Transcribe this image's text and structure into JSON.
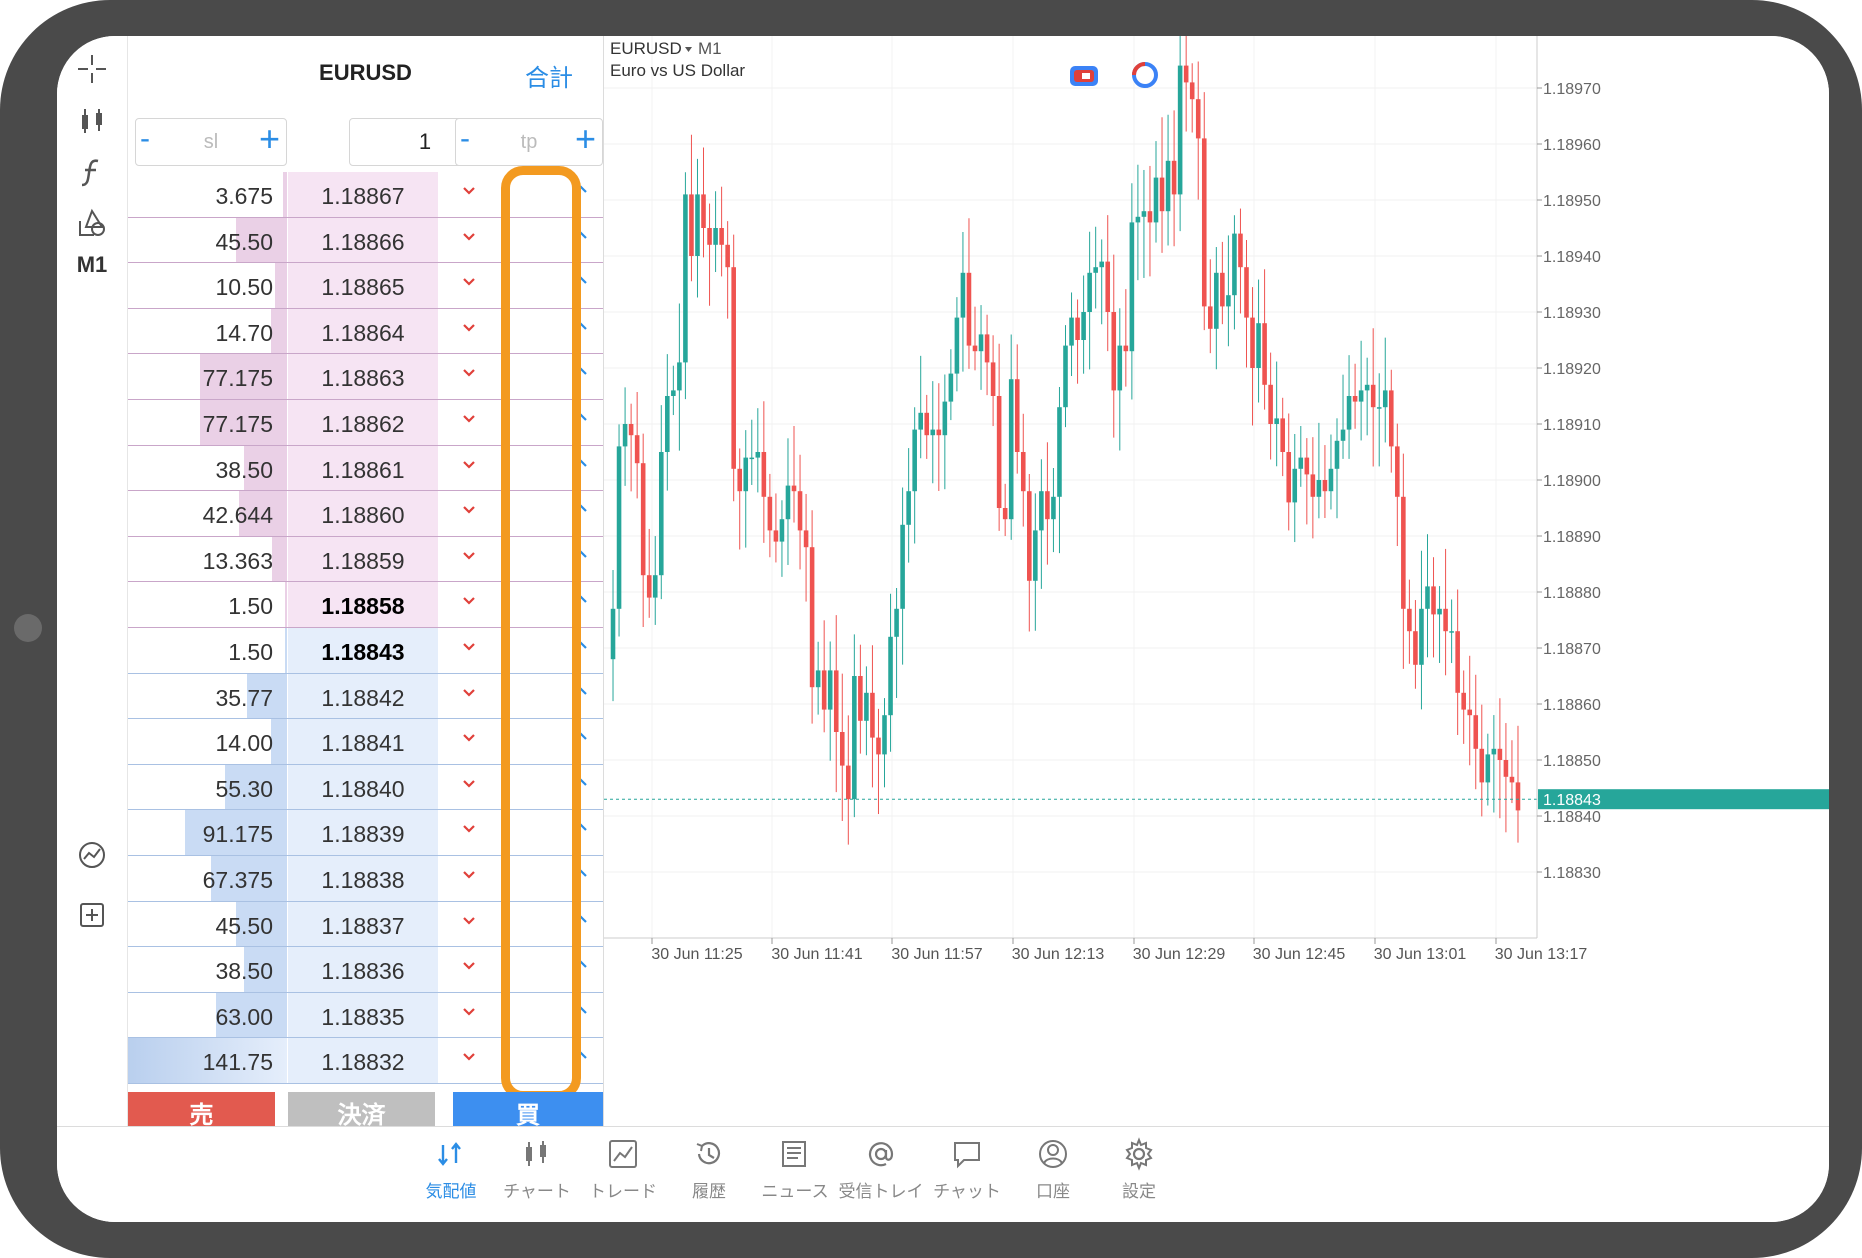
{
  "depth": {
    "symbol": "EURUSD",
    "total_label": "合計",
    "sl_placeholder": "sl",
    "tp_placeholder": "tp",
    "minus": "-",
    "plus": "+",
    "volume": "1",
    "asks": [
      {
        "volume": "3.675",
        "price": "1.18867"
      },
      {
        "volume": "45.50",
        "price": "1.18866"
      },
      {
        "volume": "10.50",
        "price": "1.18865"
      },
      {
        "volume": "14.70",
        "price": "1.18864"
      },
      {
        "volume": "77.175",
        "price": "1.18863"
      },
      {
        "volume": "77.175",
        "price": "1.18862"
      },
      {
        "volume": "38.50",
        "price": "1.18861"
      },
      {
        "volume": "42.644",
        "price": "1.18860"
      },
      {
        "volume": "13.363",
        "price": "1.18859"
      },
      {
        "volume": "1.50",
        "price": "1.18858"
      }
    ],
    "bids": [
      {
        "volume": "1.50",
        "price": "1.18843"
      },
      {
        "volume": "35.77",
        "price": "1.18842"
      },
      {
        "volume": "14.00",
        "price": "1.18841"
      },
      {
        "volume": "55.30",
        "price": "1.18840"
      },
      {
        "volume": "91.175",
        "price": "1.18839"
      },
      {
        "volume": "67.375",
        "price": "1.18838"
      },
      {
        "volume": "45.50",
        "price": "1.18837"
      },
      {
        "volume": "38.50",
        "price": "1.18836"
      },
      {
        "volume": "63.00",
        "price": "1.18835"
      },
      {
        "volume": "141.75",
        "price": "1.18832"
      }
    ],
    "sell_label": "売",
    "close_label": "決済",
    "buy_label": "買"
  },
  "toolbar": {
    "icons": [
      "crosshair-icon",
      "candlestick-icon",
      "indicator-icon",
      "objects-icon"
    ],
    "timeframe": "M1",
    "bottom_icons": [
      "trade-chart-icon",
      "new-order-icon"
    ]
  },
  "chart_data": {
    "type": "candlestick",
    "symbol": "EURUSD",
    "timeframe": "M1",
    "description": "Euro vs US Dollar",
    "ylim": [
      1.18825,
      1.18975
    ],
    "y_ticks": [
      "1.18970",
      "1.18960",
      "1.18950",
      "1.18940",
      "1.18930",
      "1.18920",
      "1.18910",
      "1.18900",
      "1.18890",
      "1.18880",
      "1.18870",
      "1.18860",
      "1.18850",
      "1.18840",
      "1.18830"
    ],
    "x_ticks": [
      "30 Jun 11:25",
      "30 Jun 11:41",
      "30 Jun 11:57",
      "30 Jun 12:13",
      "30 Jun 12:29",
      "30 Jun 12:45",
      "30 Jun 13:01",
      "30 Jun 13:17"
    ],
    "current_price": "1.18843",
    "up_color": "#26a69a",
    "down_color": "#ef5350",
    "close_series": [
      1.18877,
      1.18906,
      1.1891,
      1.18908,
      1.18903,
      1.18883,
      1.18879,
      1.18883,
      1.18905,
      1.18915,
      1.18916,
      1.18921,
      1.18951,
      1.1894,
      1.18951,
      1.18945,
      1.18942,
      1.18945,
      1.18942,
      1.18938,
      1.18902,
      1.18898,
      1.18904,
      1.18904,
      1.18905,
      1.18897,
      1.18891,
      1.18889,
      1.18893,
      1.18899,
      1.18898,
      1.18891,
      1.18888,
      1.18863,
      1.18866,
      1.18859,
      1.18866,
      1.18855,
      1.18849,
      1.18843,
      1.18865,
      1.18857,
      1.18862,
      1.18854,
      1.18851,
      1.18858,
      1.18872,
      1.18877,
      1.18892,
      1.18898,
      1.18909,
      1.18912,
      1.18908,
      1.18909,
      1.18908,
      1.18914,
      1.18919,
      1.18929,
      1.18937,
      1.18924,
      1.18923,
      1.18926,
      1.18921,
      1.18915,
      1.18895,
      1.18893,
      1.18918,
      1.18905,
      1.18898,
      1.18882,
      1.18891,
      1.18898,
      1.18893,
      1.18897,
      1.18913,
      1.18924,
      1.18929,
      1.18925,
      1.1893,
      1.18937,
      1.18938,
      1.18939,
      1.1893,
      1.18916,
      1.18924,
      1.18923,
      1.18946,
      1.18947,
      1.18948,
      1.18946,
      1.18954,
      1.18948,
      1.18957,
      1.18951,
      1.18974,
      1.18971,
      1.18968,
      1.18961,
      1.18931,
      1.18927,
      1.18937,
      1.18931,
      1.18933,
      1.18944,
      1.18938,
      1.18929,
      1.1892,
      1.18928,
      1.18917,
      1.1891,
      1.18911,
      1.18905,
      1.18896,
      1.18902,
      1.18904,
      1.18901,
      1.18897,
      1.189,
      1.18898,
      1.18902,
      1.18907,
      1.18909,
      1.18915,
      1.18914,
      1.18916,
      1.18917,
      1.18913,
      1.18913,
      1.18916,
      1.18906,
      1.18897,
      1.18877,
      1.18873,
      1.18867,
      1.18877,
      1.18881,
      1.18876,
      1.18877,
      1.18873,
      1.18873,
      1.18862,
      1.18859,
      1.18858,
      1.18852,
      1.18846,
      1.18851,
      1.18852,
      1.1885,
      1.18847,
      1.18846,
      1.18841
    ]
  },
  "tabs": [
    {
      "label": "気配値",
      "icon": "quotes-icon",
      "active": true
    },
    {
      "label": "チャート",
      "icon": "chart-icon"
    },
    {
      "label": "トレード",
      "icon": "trade-icon"
    },
    {
      "label": "履歴",
      "icon": "history-icon"
    },
    {
      "label": "ニュース",
      "icon": "news-icon"
    },
    {
      "label": "受信トレイ",
      "icon": "mail-icon"
    },
    {
      "label": "チャット",
      "icon": "chat-icon"
    },
    {
      "label": "口座",
      "icon": "account-icon"
    },
    {
      "label": "設定",
      "icon": "settings-icon"
    }
  ]
}
